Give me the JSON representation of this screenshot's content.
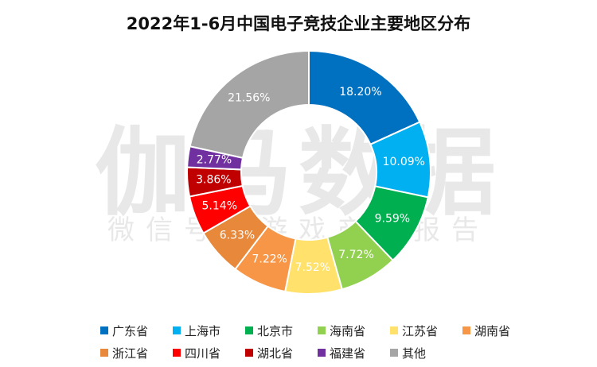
{
  "chart_data": {
    "type": "pie",
    "title": "2022年1-6月中国电子竞技企业主要地区分布",
    "categories": [
      "广东省",
      "上海市",
      "北京市",
      "海南省",
      "江苏省",
      "湖南省",
      "浙江省",
      "四川省",
      "湖北省",
      "福建省",
      "其他"
    ],
    "values": [
      18.2,
      10.09,
      9.59,
      7.72,
      7.52,
      7.22,
      6.33,
      5.14,
      3.86,
      2.77,
      21.56
    ],
    "labels": [
      "18.20%",
      "10.09%",
      "9.59%",
      "7.72%",
      "7.52%",
      "7.22%",
      "6.33%",
      "5.14%",
      "3.86%",
      "2.77%",
      "21.56%"
    ],
    "colors": [
      "#0070C0",
      "#00B0F0",
      "#00B050",
      "#92D050",
      "#FFE16B",
      "#F79646",
      "#E8883A",
      "#FF0000",
      "#C00000",
      "#7030A0",
      "#A5A5A5"
    ],
    "label_colors": [
      "#ffffff",
      "#ffffff",
      "#ffffff",
      "#ffffff",
      "#ffffff",
      "#ffffff",
      "#ffffff",
      "#ffffff",
      "#ffffff",
      "#ffffff",
      "#ffffff"
    ],
    "legend_position": "bottom",
    "donut": true
  },
  "watermark": {
    "logo": "伽马数据",
    "subtitle": "微信号：游戏产业报告"
  }
}
